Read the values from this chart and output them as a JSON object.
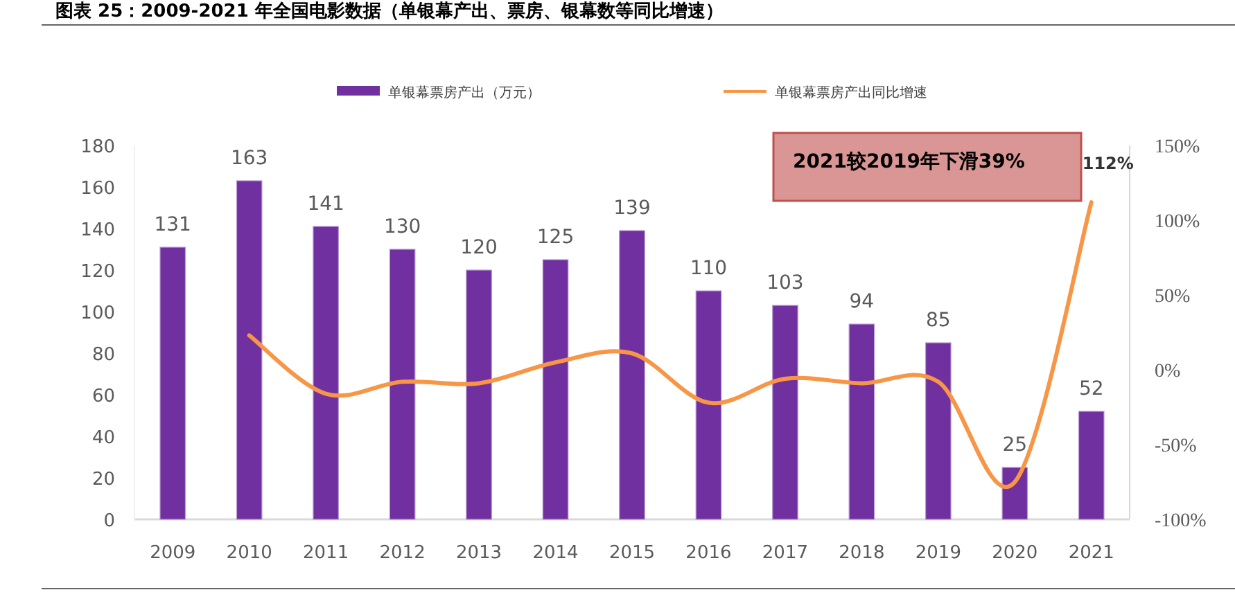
{
  "chart_data": {
    "type": "bar",
    "title": "图表 25：2009-2021 年全国电影数据（单银幕产出、票房、银幕数等同比增速）",
    "categories": [
      "2009",
      "2010",
      "2011",
      "2012",
      "2013",
      "2014",
      "2015",
      "2016",
      "2017",
      "2018",
      "2019",
      "2020",
      "2021"
    ],
    "series": [
      {
        "name": "单银幕票房产出（万元）",
        "color": "#7030a0",
        "values": [
          131,
          163,
          141,
          130,
          120,
          125,
          139,
          110,
          103,
          94,
          85,
          25,
          52
        ],
        "value_labels": [
          "131",
          "163",
          "141",
          "130",
          "120",
          "125",
          "139",
          "110",
          "103",
          "94",
          "85",
          "25",
          "52"
        ]
      },
      {
        "name": "单银幕票房产出同比增速",
        "type": "line",
        "axis": "y2",
        "color": "#f79646",
        "values": [
          null,
          23,
          -16,
          -8,
          -9,
          5,
          11,
          -22,
          -6,
          -9,
          -8,
          -75,
          112
        ],
        "value_labels": [
          null,
          null,
          null,
          null,
          null,
          null,
          null,
          null,
          null,
          null,
          null,
          null,
          "112%"
        ]
      }
    ],
    "ylim": [
      0,
      180
    ],
    "yticks": [
      0,
      20,
      40,
      60,
      80,
      100,
      120,
      140,
      160,
      180
    ],
    "y2lim": [
      -100,
      150
    ],
    "y2ticks": [
      {
        "value": -100,
        "label": "-100%"
      },
      {
        "value": -50,
        "label": "-50%"
      },
      {
        "value": 0,
        "label": "0%"
      },
      {
        "value": 50,
        "label": "50%"
      },
      {
        "value": 100,
        "label": "100%"
      },
      {
        "value": 150,
        "label": "150%"
      }
    ],
    "annotations": [
      "2021较2019年下滑39%"
    ],
    "legend": "top",
    "marker": "none",
    "line_style": "solid"
  }
}
